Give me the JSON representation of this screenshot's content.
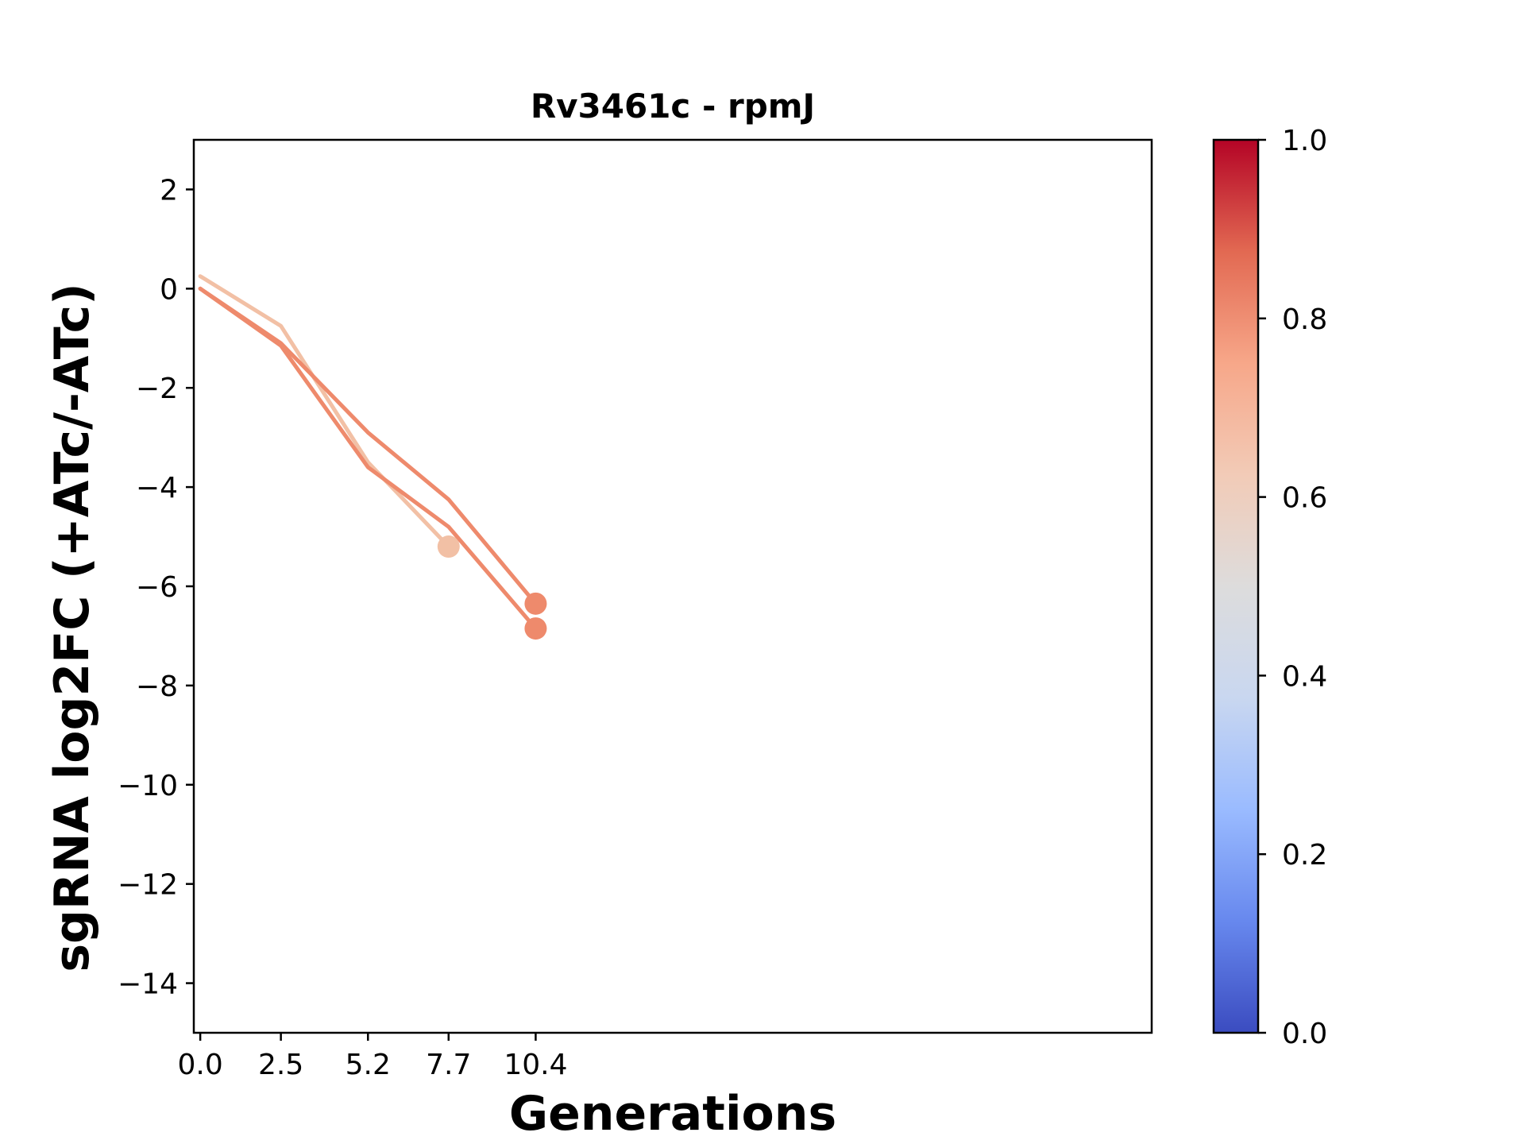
{
  "chart_data": {
    "type": "line",
    "title": "Rv3461c - rpmJ",
    "xlabel": "Generations",
    "ylabel": "sgRNA log2FC (+ATc/-ATc)",
    "xlim": [
      -0.2,
      29.5
    ],
    "ylim": [
      -15,
      3
    ],
    "xticks": [
      "0.0",
      "2.5",
      "5.2",
      "7.7",
      "10.4"
    ],
    "xtick_values": [
      0.0,
      2.5,
      5.2,
      7.7,
      10.4
    ],
    "yticks": [
      2,
      0,
      -2,
      -4,
      -6,
      -8,
      -10,
      -12,
      -14
    ],
    "ytick_labels": [
      "2",
      "0",
      "−2",
      "−4",
      "−6",
      "−8",
      "−10",
      "−12",
      "−14"
    ],
    "grid": false,
    "colormap": "coolwarm",
    "colorbar": {
      "min": 0.0,
      "max": 1.0,
      "ticks": [
        "0.0",
        "0.2",
        "0.4",
        "0.6",
        "0.8",
        "1.0"
      ],
      "tick_values": [
        0.0,
        0.2,
        0.4,
        0.6,
        0.8,
        1.0
      ],
      "stops": [
        "#3b4cc0",
        "#6788ee",
        "#9abbff",
        "#c9d7f0",
        "#dddcdc",
        "#f2cbb7",
        "#f7a789",
        "#e26952",
        "#b40426"
      ]
    },
    "series": [
      {
        "color": "#f2c0a5",
        "x": [
          0.0,
          2.5,
          5.2,
          7.7
        ],
        "y": [
          0.25,
          -0.75,
          -3.5,
          -5.2
        ]
      },
      {
        "color": "#ee8a6c",
        "x": [
          0.0,
          2.5,
          5.2,
          7.7,
          10.4
        ],
        "y": [
          0.0,
          -1.1,
          -2.9,
          -4.25,
          -6.35
        ]
      },
      {
        "color": "#ee8a6c",
        "x": [
          0.0,
          2.5,
          5.2,
          7.7,
          10.4
        ],
        "y": [
          0.0,
          -1.15,
          -3.6,
          -4.8,
          -6.85
        ]
      }
    ]
  }
}
